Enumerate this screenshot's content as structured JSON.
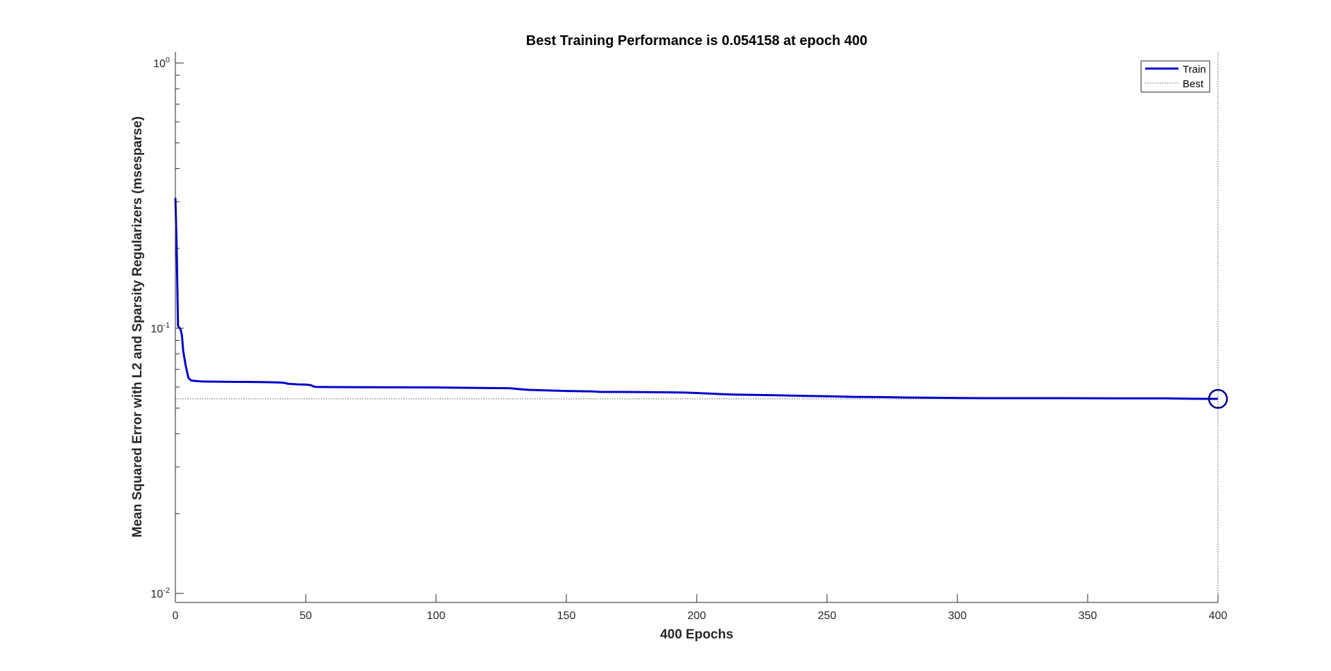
{
  "chart_data": {
    "type": "line",
    "title": "Best Training Performance is 0.054158 at epoch 400",
    "xlabel": "400 Epochs",
    "ylabel": "Mean Squared Error with L2 and Sparsity Regularizers  (msesparse)",
    "xlim": [
      0,
      400
    ],
    "ylim": [
      0.01,
      1
    ],
    "yscale": "log",
    "xticks": [
      0,
      50,
      100,
      150,
      200,
      250,
      300,
      350,
      400
    ],
    "xtick_labels": [
      "0",
      "50",
      "100",
      "150",
      "200",
      "250",
      "300",
      "350",
      "400"
    ],
    "yticks": [
      {
        "value": 1,
        "base": "10",
        "exp": "0"
      },
      {
        "value": 0.1,
        "base": "10",
        "exp": "-1"
      },
      {
        "value": 0.01,
        "base": "10",
        "exp": "-2"
      }
    ],
    "grid": false,
    "legend": {
      "position": "top-right",
      "entries": [
        "Train",
        "Best"
      ]
    },
    "colors": {
      "train": "#0000cc",
      "best": "#555555",
      "axis": "#262626"
    },
    "series": [
      {
        "name": "Train",
        "x": [
          0,
          0.5,
          1,
          2,
          2.5,
          3,
          4,
          5,
          6,
          8,
          10,
          15,
          20,
          30,
          35,
          40,
          42,
          43,
          45,
          47,
          50,
          52,
          53,
          54,
          60,
          80,
          100,
          120,
          128,
          130,
          133,
          135,
          140,
          150,
          160,
          163,
          170,
          180,
          190,
          195,
          200,
          205,
          210,
          215,
          220,
          230,
          240,
          250,
          260,
          270,
          280,
          290,
          300,
          310,
          320,
          340,
          360,
          380,
          390,
          400
        ],
        "y": [
          0.31,
          0.2,
          0.102,
          0.099,
          0.094,
          0.082,
          0.072,
          0.065,
          0.0635,
          0.0632,
          0.063,
          0.0629,
          0.0628,
          0.0627,
          0.0626,
          0.0624,
          0.0622,
          0.0618,
          0.0616,
          0.0614,
          0.0613,
          0.061,
          0.0603,
          0.0601,
          0.06,
          0.0599,
          0.0598,
          0.0595,
          0.0594,
          0.0592,
          0.0588,
          0.0586,
          0.0584,
          0.058,
          0.0578,
          0.0575,
          0.0575,
          0.0574,
          0.0573,
          0.0572,
          0.057,
          0.0567,
          0.0564,
          0.0562,
          0.0561,
          0.0559,
          0.0556,
          0.0554,
          0.0551,
          0.055,
          0.0548,
          0.0547,
          0.0546,
          0.0545,
          0.0545,
          0.0545,
          0.0544,
          0.0544,
          0.0542,
          0.054158
        ]
      },
      {
        "name": "Best",
        "best_epoch": 400,
        "best_value": 0.054158
      }
    ]
  }
}
